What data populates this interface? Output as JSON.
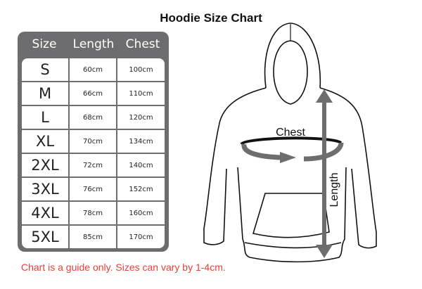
{
  "title": "Hoodie Size Chart",
  "table": {
    "headers": [
      "Size",
      "Length",
      "Chest"
    ],
    "rows": [
      [
        "S",
        "60cm",
        "100cm"
      ],
      [
        "M",
        "66cm",
        "110cm"
      ],
      [
        "L",
        "68cm",
        "120cm"
      ],
      [
        "XL",
        "70cm",
        "134cm"
      ],
      [
        "2XL",
        "72cm",
        "140cm"
      ],
      [
        "3XL",
        "76cm",
        "152cm"
      ],
      [
        "4XL",
        "78cm",
        "160cm"
      ],
      [
        "5XL",
        "85cm",
        "170cm"
      ]
    ]
  },
  "diagram": {
    "chest_label": "Chest",
    "length_label": "Length"
  },
  "note": "Chart is a guide only. Sizes can vary by 1-4cm.",
  "colors": {
    "table_frame": "#6d6d6f",
    "arrow": "#6d6d6f",
    "note": "#e8403a"
  }
}
